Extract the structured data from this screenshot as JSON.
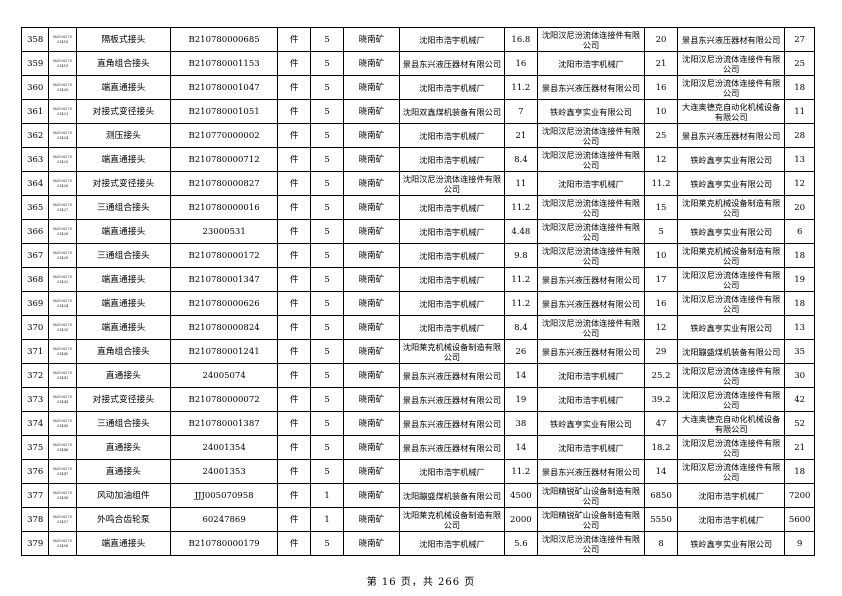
{
  "rows": [
    {
      "no": "358",
      "code": "B2050270 01418",
      "name": "隔板式接头",
      "part": "B210780000685",
      "unit": "件",
      "qty": "5",
      "mine": "晓南矿",
      "s1": "沈阳市浩宇机械厂",
      "p1": "16.8",
      "s2": "沈阳汉尼汾流体连接件有限公司",
      "p2": "20",
      "s3": "景县东兴液压器材有限公司",
      "p3": "27"
    },
    {
      "no": "359",
      "code": "B2050270 01419",
      "name": "直角组合接头",
      "part": "B210780001153",
      "unit": "件",
      "qty": "5",
      "mine": "晓南矿",
      "s1": "景县东兴液压器材有限公司",
      "p1": "16",
      "s2": "沈阳市浩宇机械厂",
      "p2": "21",
      "s3": "沈阳汉尼汾流体连接件有限公司",
      "p3": "25"
    },
    {
      "no": "360",
      "code": "B2050270 01420",
      "name": "端直通接头",
      "part": "B210780001047",
      "unit": "件",
      "qty": "5",
      "mine": "晓南矿",
      "s1": "沈阳市浩宇机械厂",
      "p1": "11.2",
      "s2": "景县东兴液压器材有限公司",
      "p2": "16",
      "s3": "沈阳汉尼汾流体连接件有限公司",
      "p3": "18"
    },
    {
      "no": "361",
      "code": "B2050270 01421",
      "name": "对接式变径接头",
      "part": "B210780001051",
      "unit": "件",
      "qty": "5",
      "mine": "晓南矿",
      "s1": "沈阳双鑫煤机装备有限公司",
      "p1": "7",
      "s2": "铁岭鑫亨实业有限公司",
      "p2": "10",
      "s3": "大连奥德克自动化机械设备有限公司",
      "p3": "11"
    },
    {
      "no": "362",
      "code": "B2050270 01424",
      "name": "测压接头",
      "part": "B210770000002",
      "unit": "件",
      "qty": "5",
      "mine": "晓南矿",
      "s1": "沈阳市浩宇机械厂",
      "p1": "21",
      "s2": "沈阳汉尼汾流体连接件有限公司",
      "p2": "25",
      "s3": "景县东兴液压器材有限公司",
      "p3": "28"
    },
    {
      "no": "363",
      "code": "B2050270 01425",
      "name": "端直通接头",
      "part": "B210780000712",
      "unit": "件",
      "qty": "5",
      "mine": "晓南矿",
      "s1": "沈阳市浩宇机械厂",
      "p1": "8.4",
      "s2": "沈阳汉尼汾流体连接件有限公司",
      "p2": "12",
      "s3": "铁岭鑫亨实业有限公司",
      "p3": "13"
    },
    {
      "no": "364",
      "code": "B2050270 01426",
      "name": "对接式变径接头",
      "part": "B210780000827",
      "unit": "件",
      "qty": "5",
      "mine": "晓南矿",
      "s1": "沈阳汉尼汾流体连接件有限公司",
      "p1": "11",
      "s2": "沈阳市浩宇机械厂",
      "p2": "11.2",
      "s3": "铁岭鑫亨实业有限公司",
      "p3": "12"
    },
    {
      "no": "365",
      "code": "B2050270 01427",
      "name": "三通组合接头",
      "part": "B210780000016",
      "unit": "件",
      "qty": "5",
      "mine": "晓南矿",
      "s1": "沈阳市浩宇机械厂",
      "p1": "11.2",
      "s2": "沈阳汉尼汾流体连接件有限公司",
      "p2": "15",
      "s3": "沈阳莱克机械设备制造有限公司",
      "p3": "20"
    },
    {
      "no": "366",
      "code": "B2050270 01428",
      "name": "端直通接头",
      "part": "23000531",
      "unit": "件",
      "qty": "5",
      "mine": "晓南矿",
      "s1": "沈阳市浩宇机械厂",
      "p1": "4.48",
      "s2": "沈阳汉尼汾流体连接件有限公司",
      "p2": "5",
      "s3": "铁岭鑫亨实业有限公司",
      "p3": "6"
    },
    {
      "no": "367",
      "code": "B2050270 01429",
      "name": "三通组合接头",
      "part": "B210780000172",
      "unit": "件",
      "qty": "5",
      "mine": "晓南矿",
      "s1": "沈阳市浩宇机械厂",
      "p1": "9.8",
      "s2": "沈阳汉尼汾流体连接件有限公司",
      "p2": "10",
      "s3": "沈阳莱克机械设备制造有限公司",
      "p3": "18"
    },
    {
      "no": "368",
      "code": "B2050270 01432",
      "name": "端直通接头",
      "part": "B210780001347",
      "unit": "件",
      "qty": "5",
      "mine": "晓南矿",
      "s1": "沈阳市浩宇机械厂",
      "p1": "11.2",
      "s2": "景县东兴液压器材有限公司",
      "p2": "17",
      "s3": "沈阳汉尼汾流体连接件有限公司",
      "p3": "19"
    },
    {
      "no": "369",
      "code": "B2050270 01434",
      "name": "端直通接头",
      "part": "B210780000626",
      "unit": "件",
      "qty": "5",
      "mine": "晓南矿",
      "s1": "沈阳市浩宇机械厂",
      "p1": "11.2",
      "s2": "景县东兴液压器材有限公司",
      "p2": "16",
      "s3": "沈阳汉尼汾流体连接件有限公司",
      "p3": "18"
    },
    {
      "no": "370",
      "code": "B2050270 01435",
      "name": "端直通接头",
      "part": "B210780000824",
      "unit": "件",
      "qty": "5",
      "mine": "晓南矿",
      "s1": "沈阳市浩宇机械厂",
      "p1": "8.4",
      "s2": "沈阳汉尼汾流体连接件有限公司",
      "p2": "12",
      "s3": "铁岭鑫亨实业有限公司",
      "p3": "13"
    },
    {
      "no": "371",
      "code": "B2050270 01440",
      "name": "直角组合接头",
      "part": "B210780001241",
      "unit": "件",
      "qty": "5",
      "mine": "晓南矿",
      "s1": "沈阳莱克机械设备制造有限公司",
      "p1": "26",
      "s2": "景县东兴液压器材有限公司",
      "p2": "29",
      "s3": "沈阳蹦盛煤机装备有限公司",
      "p3": "35"
    },
    {
      "no": "372",
      "code": "B2050270 01441",
      "name": "直通接头",
      "part": "24005074",
      "unit": "件",
      "qty": "5",
      "mine": "晓南矿",
      "s1": "景县东兴液压器材有限公司",
      "p1": "14",
      "s2": "沈阳市浩宇机械厂",
      "p2": "25.2",
      "s3": "沈阳汉尼汾流体连接件有限公司",
      "p3": "30"
    },
    {
      "no": "373",
      "code": "B2050270 01444",
      "name": "对接式变径接头",
      "part": "B210780000072",
      "unit": "件",
      "qty": "5",
      "mine": "晓南矿",
      "s1": "景县东兴液压器材有限公司",
      "p1": "19",
      "s2": "沈阳市浩宇机械厂",
      "p2": "39.2",
      "s3": "沈阳汉尼汾流体连接件有限公司",
      "p3": "42"
    },
    {
      "no": "374",
      "code": "B2050270 01445",
      "name": "三通组合接头",
      "part": "B210780001387",
      "unit": "件",
      "qty": "5",
      "mine": "晓南矿",
      "s1": "景县东兴液压器材有限公司",
      "p1": "38",
      "s2": "铁岭鑫亨实业有限公司",
      "p2": "47",
      "s3": "大连奥德克自动化机械设备有限公司",
      "p3": "52"
    },
    {
      "no": "375",
      "code": "B2050270 01446",
      "name": "直通接头",
      "part": "24001354",
      "unit": "件",
      "qty": "5",
      "mine": "晓南矿",
      "s1": "景县东兴液压器材有限公司",
      "p1": "14",
      "s2": "沈阳市浩宇机械厂",
      "p2": "18.2",
      "s3": "沈阳汉尼汾流体连接件有限公司",
      "p3": "21"
    },
    {
      "no": "376",
      "code": "B2050270 01447",
      "name": "直通接头",
      "part": "24001353",
      "unit": "件",
      "qty": "5",
      "mine": "晓南矿",
      "s1": "沈阳市浩宇机械厂",
      "p1": "11.2",
      "s2": "景县东兴液压器材有限公司",
      "p2": "14",
      "s3": "沈阳汉尼汾流体连接件有限公司",
      "p3": "18"
    },
    {
      "no": "377",
      "code": "B2050270 01456",
      "name": "风动加油组件",
      "part": "JJJ005070958",
      "unit": "件",
      "qty": "1",
      "mine": "晓南矿",
      "s1": "沈阳蹦盛煤机装备有限公司",
      "p1": "4500",
      "s2": "沈阳精锐矿山设备制造有限公司",
      "p2": "6850",
      "s3": "沈阳市浩宇机械厂",
      "p3": "7200"
    },
    {
      "no": "378",
      "code": "B2050270 01457",
      "name": "外鸣合齿轮泵",
      "part": "60247869",
      "unit": "件",
      "qty": "1",
      "mine": "晓南矿",
      "s1": "沈阳莱克机械设备制造有限公司",
      "p1": "2000",
      "s2": "沈阳精锐矿山设备制造有限公司",
      "p2": "5550",
      "s3": "沈阳市浩宇机械厂",
      "p3": "5600"
    },
    {
      "no": "379",
      "code": "B2050270 01458",
      "name": "端直通接头",
      "part": "B210780000179",
      "unit": "件",
      "qty": "5",
      "mine": "晓南矿",
      "s1": "沈阳市浩宇机械厂",
      "p1": "5.6",
      "s2": "沈阳汉尼汾流体连接件有限公司",
      "p2": "8",
      "s3": "铁岭鑫亨实业有限公司",
      "p3": "9"
    }
  ],
  "footer": "第 16 页，共 266 页"
}
